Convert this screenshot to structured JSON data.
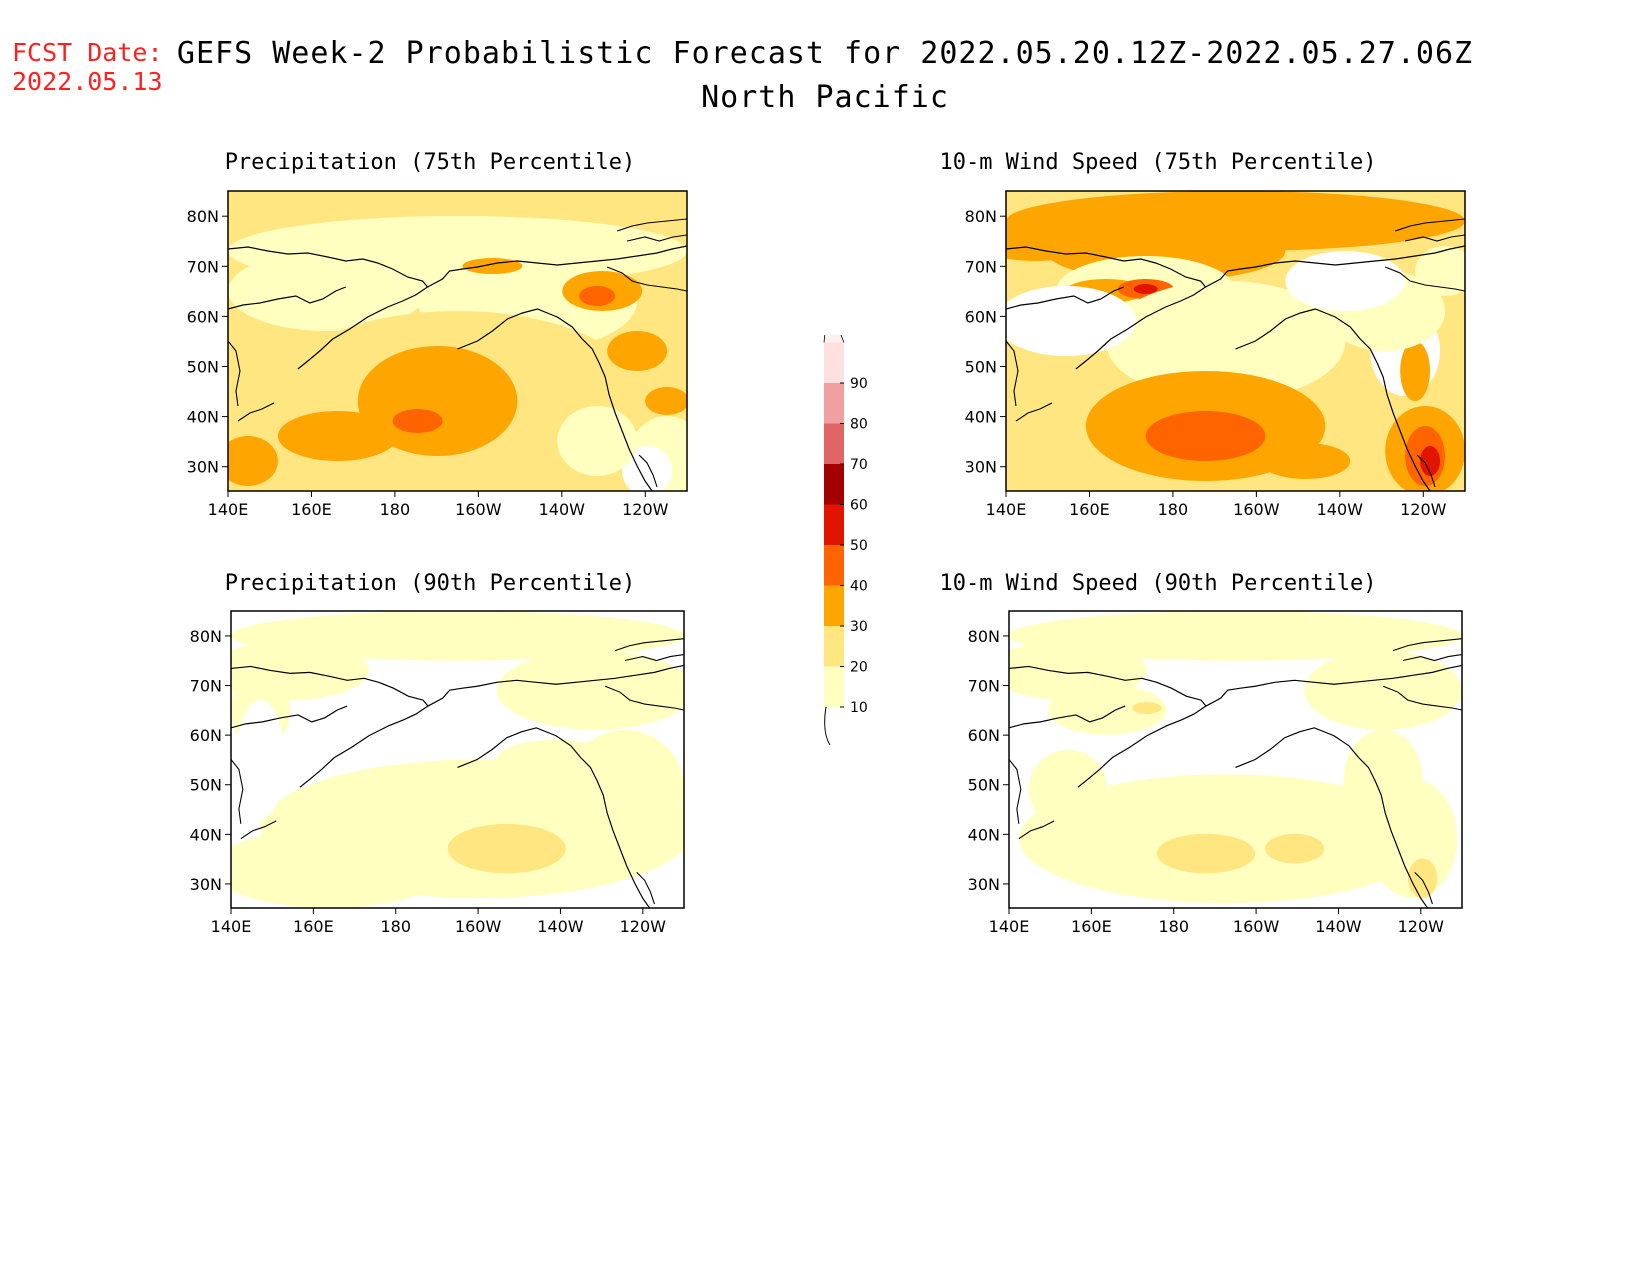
{
  "header": {
    "fcst_label": "FCST Date:",
    "fcst_date": "2022.05.13",
    "title_line1": "GEFS Week-2 Probabilistic Forecast for 2022.05.20.12Z-2022.05.27.06Z",
    "title_line2": "North Pacific"
  },
  "panels": [
    {
      "title": "Precipitation (75th Percentile)"
    },
    {
      "title": "10-m Wind Speed (75th Percentile)"
    },
    {
      "title": "Precipitation (90th Percentile)"
    },
    {
      "title": "10-m Wind Speed (90th Percentile)"
    }
  ],
  "axes": {
    "lon_labels": [
      "140E",
      "160E",
      "180",
      "160W",
      "140W",
      "120W"
    ],
    "lat_labels": [
      "80N",
      "70N",
      "60N",
      "50N",
      "40N",
      "30N"
    ]
  },
  "colorbar": {
    "levels": [
      "10",
      "20",
      "30",
      "40",
      "50",
      "60",
      "70",
      "80",
      "90"
    ],
    "colors": [
      "#ffffc0",
      "#ffe680",
      "#ffa500",
      "#ff6400",
      "#e11400",
      "#a50000",
      "#e06666",
      "#f0a0a0",
      "#ffe0e0"
    ]
  }
}
